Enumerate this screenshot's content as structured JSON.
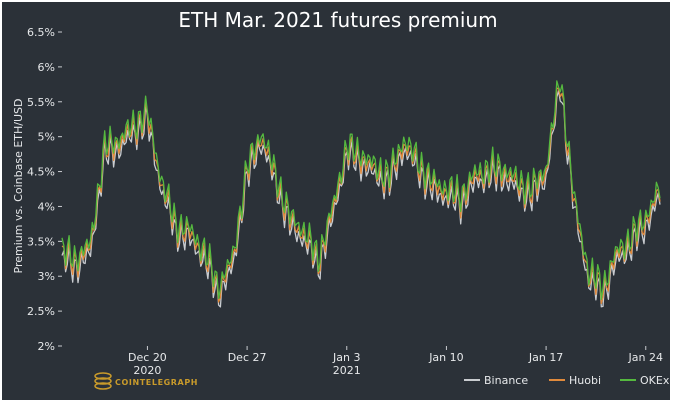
{
  "chart_data": {
    "type": "line",
    "title": "ETH Mar. 2021 futures premium",
    "xlabel": "",
    "ylabel": "Premium vs. Coinbase ETH/USD",
    "x_range": [
      "2020-12-14",
      "2021-01-25"
    ],
    "ylim": [
      2,
      6.5
    ],
    "yticks": [
      2,
      2.5,
      3,
      3.5,
      4,
      4.5,
      5,
      5.5,
      6,
      6.5
    ],
    "ytick_labels": [
      "2%",
      "2.5%",
      "3%",
      "3.5%",
      "4%",
      "4.5%",
      "5%",
      "5.5%",
      "6%",
      "6.5%"
    ],
    "xticks": [
      {
        "date": "2020-12-20",
        "label": "Dec 20",
        "sublabel": "2020"
      },
      {
        "date": "2020-12-27",
        "label": "Dec 27",
        "sublabel": ""
      },
      {
        "date": "2021-01-03",
        "label": "Jan 3",
        "sublabel": "2021"
      },
      {
        "date": "2021-01-10",
        "label": "Jan 10",
        "sublabel": ""
      },
      {
        "date": "2021-01-17",
        "label": "Jan 17",
        "sublabel": ""
      },
      {
        "date": "2021-01-24",
        "label": "Jan 24",
        "sublabel": ""
      }
    ],
    "grid": false,
    "legend_position": "bottom-right",
    "base_series": {
      "x": [
        "2020-12-14",
        "2020-12-15",
        "2020-12-16",
        "2020-12-17",
        "2020-12-18",
        "2020-12-19",
        "2020-12-20",
        "2020-12-21",
        "2020-12-22",
        "2020-12-23",
        "2020-12-24",
        "2020-12-25",
        "2020-12-26",
        "2020-12-27",
        "2020-12-28",
        "2020-12-29",
        "2020-12-30",
        "2020-12-31",
        "2021-01-01",
        "2021-01-02",
        "2021-01-03",
        "2021-01-04",
        "2021-01-05",
        "2021-01-06",
        "2021-01-07",
        "2021-01-08",
        "2021-01-09",
        "2021-01-10",
        "2021-01-11",
        "2021-01-12",
        "2021-01-13",
        "2021-01-14",
        "2021-01-15",
        "2021-01-16",
        "2021-01-17",
        "2021-01-18",
        "2021-01-19",
        "2021-01-20",
        "2021-01-21",
        "2021-01-22",
        "2021-01-23",
        "2021-01-24",
        "2021-01-25"
      ],
      "y": [
        3.3,
        3.2,
        3.4,
        4.8,
        4.9,
        5.1,
        5.3,
        4.3,
        3.7,
        3.6,
        3.3,
        2.8,
        3.2,
        4.5,
        5.0,
        4.4,
        3.8,
        3.6,
        3.2,
        3.9,
        4.8,
        4.7,
        4.5,
        4.4,
        4.9,
        4.6,
        4.3,
        4.2,
        4.1,
        4.4,
        4.5,
        4.5,
        4.3,
        4.2,
        4.5,
        5.8,
        4.0,
        3.0,
        2.8,
        3.3,
        3.5,
        3.8,
        4.2
      ]
    },
    "series": [
      {
        "name": "Binance",
        "color": "#c9ccd0",
        "offset": -0.08
      },
      {
        "name": "Huobi",
        "color": "#e08a3c",
        "offset": 0.0
      },
      {
        "name": "OKEx",
        "color": "#55b93f",
        "offset": 0.07
      }
    ]
  },
  "brand": {
    "name": "COINTELEGRAPH"
  }
}
